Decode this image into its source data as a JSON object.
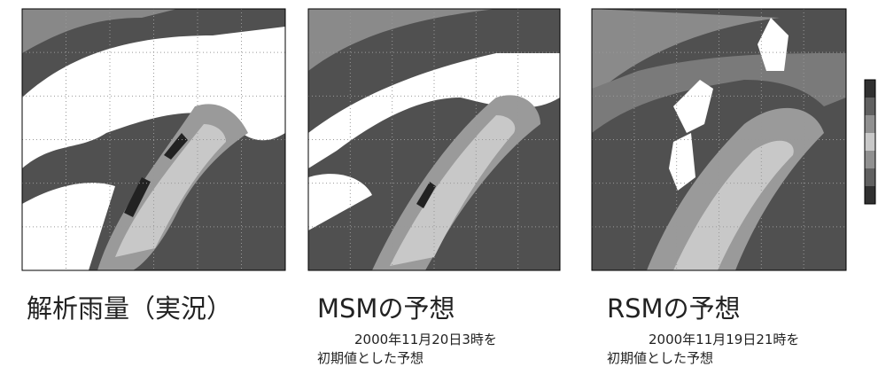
{
  "panels": [
    {
      "title": "解析雨量（実況）"
    },
    {
      "title": "MSMの予想",
      "subtitle": [
        "2000年11月20日3時を",
        "初期値とした予想"
      ]
    },
    {
      "title": "RSMの予想",
      "subtitle": [
        "2000年11月19日21時を",
        "初期値とした予想"
      ]
    }
  ]
}
